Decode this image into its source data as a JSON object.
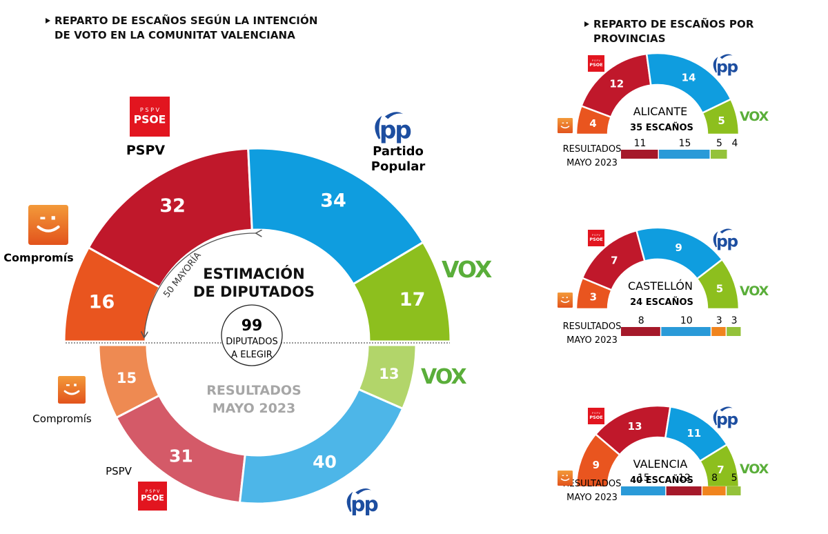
{
  "main_title": {
    "line1": "REPARTO DE ESCAÑOS SEGÚN LA INTENCIÓN",
    "line2": "DE VOTO EN LA COMUNITAT VALENCIANA"
  },
  "side_title": {
    "line1": "REPARTO DE ESCAÑOS POR",
    "line2": "PROVINCIAS"
  },
  "colors": {
    "psoe": "#c0182b",
    "pp": "#0f9ddf",
    "vox": "#8dbf1e",
    "compromis": "#e9551f",
    "psoe_prev": "#d45a68",
    "pp_prev": "#4db6e8",
    "vox_prev": "#b2d56a",
    "compromis_prev": "#ee8a52",
    "bar_psoe": "#a5192a",
    "bar_pp": "#2a9ad8",
    "bar_vox": "#94c23a",
    "bar_compromis": "#f0841e",
    "pp_logo": "#1d4ea0",
    "vox_logo": "#5aae3a",
    "psoe_logo": "#e2151f"
  },
  "labels": {
    "pspv": "PSPV",
    "pp_line1": "Partido",
    "pp_line2": "Popular",
    "compromis": "Compromís",
    "vox_logo": "VOX",
    "pp_logo": "PP",
    "psoe_logo_top": "P S P V",
    "psoe_logo_main": "PSOE",
    "estimacion_line1": "ESTIMACIÓN",
    "estimacion_line2": "DE DIPUTADOS",
    "total": "99",
    "total_line1": "DIPUTADOS",
    "total_line2": "A ELEGIR",
    "resultados_line1": "RESULTADOS",
    "resultados_line2": "MAYO 2023",
    "mayoria": "50 MAYORÍA"
  },
  "chart_data": [
    {
      "type": "pie",
      "title": "Estimación de diputados",
      "subtitle": "Comunitat Valenciana — 99 diputados a elegir, 50 mayoría",
      "categories": [
        "Compromís",
        "PSPV",
        "Partido Popular",
        "VOX"
      ],
      "values": [
        16,
        32,
        34,
        17
      ],
      "total": 99,
      "majority": 50
    },
    {
      "type": "pie",
      "title": "Resultados mayo 2023",
      "categories": [
        "Compromís",
        "PSPV",
        "Partido Popular",
        "VOX"
      ],
      "values": [
        15,
        31,
        40,
        13
      ],
      "total": 99
    },
    {
      "type": "pie",
      "title": "Alicante",
      "subtitle": "35 ESCAÑOS",
      "categories": [
        "Compromís",
        "PSPV",
        "PP",
        "VOX"
      ],
      "values": [
        4,
        12,
        14,
        5
      ],
      "results_2023": {
        "categories": [
          "PSPV",
          "PP",
          "VOX",
          "Compromís"
        ],
        "values": [
          11,
          15,
          5,
          4
        ]
      }
    },
    {
      "type": "pie",
      "title": "Castellón",
      "subtitle": "24 ESCAÑOS",
      "categories": [
        "Compromís",
        "PSPV",
        "PP",
        "VOX"
      ],
      "values": [
        3,
        7,
        9,
        5
      ],
      "results_2023": {
        "categories": [
          "PSPV",
          "PP",
          "Compromís",
          "VOX"
        ],
        "values": [
          8,
          10,
          3,
          3
        ]
      }
    },
    {
      "type": "pie",
      "title": "Valencia",
      "subtitle": "40 ESCAÑOS",
      "categories": [
        "Compromís",
        "PSPV",
        "PP",
        "VOX"
      ],
      "values": [
        9,
        13,
        11,
        7
      ],
      "results_2023": {
        "categories": [
          "PP",
          "PSPV",
          "Compromís",
          "VOX"
        ],
        "values": [
          15,
          12,
          8,
          5
        ]
      }
    }
  ],
  "provinces": [
    {
      "name": "ALICANTE",
      "seats_label": "35 ESCAÑOS",
      "results_line1": "RESULTADOS",
      "results_line2": "MAYO 2023"
    },
    {
      "name": "CASTELLÓN",
      "seats_label": "24 ESCAÑOS",
      "results_line1": "RESULTADOS",
      "results_line2": "MAYO 2023"
    },
    {
      "name": "VALENCIA",
      "seats_label": "40 ESCAÑOS",
      "results_line1": "RESULTADOS",
      "results_line2": "MAYO 2023"
    }
  ]
}
